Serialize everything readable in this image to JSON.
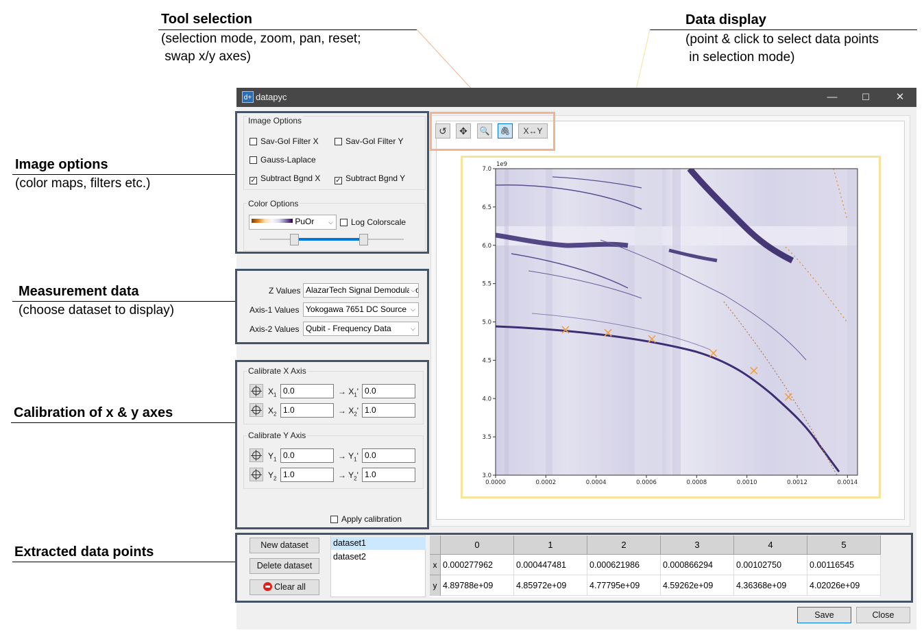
{
  "annotations": {
    "tool_selection": {
      "title": "Tool selection",
      "line1": "(selection mode, zoom, pan, reset;",
      "line2": " swap x/y axes)"
    },
    "data_display": {
      "title": "Data display",
      "line1": "(point & click to select data points",
      "line2": " in selection mode)"
    },
    "image_options": {
      "title": "Image options",
      "line1": "(color maps, filters etc.)"
    },
    "measurement_data": {
      "title": "Measurement data",
      "line1": "(choose dataset to display)"
    },
    "calibration": {
      "title": "Calibration of x & y axes"
    },
    "extracted": {
      "title": "Extracted data points"
    }
  },
  "window": {
    "title": "datapyc",
    "icon_text": "d+",
    "minimize_glyph": "—",
    "maximize_glyph": "☐",
    "close_glyph": "✕"
  },
  "image_options": {
    "group_title": "Image Options",
    "checkboxes": [
      {
        "label": "Sav-Gol Filter X",
        "checked": false
      },
      {
        "label": "Sav-Gol Filter Y",
        "checked": false
      },
      {
        "label": "Gauss-Laplace",
        "checked": false
      },
      {
        "label": "Subtract Bgnd X",
        "checked": true
      },
      {
        "label": "Subtract Bgnd Y",
        "checked": true
      }
    ],
    "color_group_title": "Color Options",
    "colormap": "PuOr",
    "log_colorscale": {
      "label": "Log Colorscale",
      "checked": false
    }
  },
  "measurement": {
    "z_label": "Z Values",
    "z_value": "AlazarTech Signal Demodulation",
    "axis1_label": "Axis-1 Values",
    "axis1_value": "Yokogawa 7651 DC Source",
    "axis2_label": "Axis-2 Values",
    "axis2_value": "Qubit - Frequency  Data"
  },
  "calibration": {
    "x_group_title": "Calibrate X Axis",
    "y_group_title": "Calibrate Y Axis",
    "x1": {
      "label": "X",
      "sub": "1",
      "value": "0.0",
      "arrow": "→ X",
      "mapped": "0.0"
    },
    "x2": {
      "label": "X",
      "sub": "2",
      "value": "1.0",
      "arrow": "→ X",
      "mapped": "1.0"
    },
    "y1": {
      "label": "Y",
      "sub": "1",
      "value": "0.0",
      "arrow": "→ Y",
      "mapped": "0.0"
    },
    "y2": {
      "label": "Y",
      "sub": "2",
      "value": "1.0",
      "arrow": "→ Y",
      "mapped": "1.0"
    },
    "apply": {
      "label": "Apply calibration",
      "checked": false
    }
  },
  "toolbar": {
    "reset_icon": "↺",
    "pan_icon": "✥",
    "zoom_icon": "🔍",
    "select_icon": "🖇",
    "swap_label": "X↔Y"
  },
  "plot": {
    "multiplier_label": "1e9",
    "x_ticks": [
      "0.0000",
      "0.0002",
      "0.0004",
      "0.0006",
      "0.0008",
      "0.0010",
      "0.0012",
      "0.0014"
    ],
    "y_ticks": [
      "3.0",
      "3.5",
      "4.0",
      "4.5",
      "5.0",
      "5.5",
      "6.0",
      "6.5",
      "7.0"
    ],
    "xlim": [
      0.0,
      0.00144
    ],
    "ylim": [
      3000000000.0,
      7000000000.0
    ],
    "selected_marker_color": "#f0a040"
  },
  "datasets": {
    "new_label": "New dataset",
    "delete_label": "Delete dataset",
    "clear_label": "Clear all",
    "items": [
      "dataset1",
      "dataset2"
    ],
    "selected": "dataset1"
  },
  "table": {
    "columns": [
      "0",
      "1",
      "2",
      "3",
      "4",
      "5"
    ],
    "row_x_label": "x",
    "row_y_label": "y",
    "x": [
      "0.000277962",
      "0.000447481",
      "0.000621986",
      "0.000866294",
      "0.00102750",
      "0.00116545"
    ],
    "y": [
      "4.89788e+09",
      "4.85972e+09",
      "4.77795e+09",
      "4.59262e+09",
      "4.36368e+09",
      "4.02026e+09"
    ]
  },
  "footer": {
    "save_label": "Save",
    "close_label": "Close"
  }
}
